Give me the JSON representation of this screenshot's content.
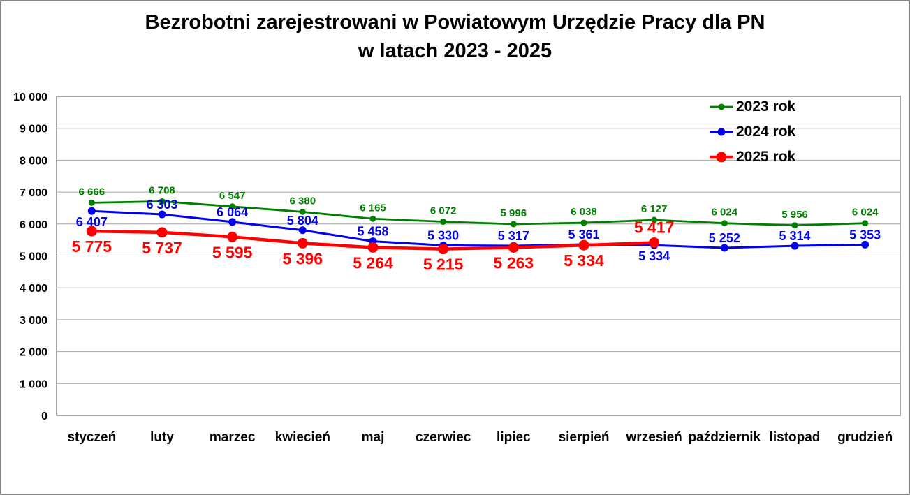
{
  "chart_data": {
    "type": "line",
    "title_line1": "Bezrobotni zarejestrowani w Powiatowym Urzędzie Pracy dla PN",
    "title_line2": "w latach 2023 - 2025",
    "categories": [
      "styczeń",
      "luty",
      "marzec",
      "kwiecień",
      "maj",
      "czerwiec",
      "lipiec",
      "sierpień",
      "wrzesień",
      "październik",
      "listopad",
      "grudzień"
    ],
    "series": [
      {
        "name": "2023 rok",
        "color": "#008000",
        "values": [
          6666,
          6708,
          6547,
          6380,
          6165,
          6072,
          5996,
          6038,
          6127,
          6024,
          5956,
          6024
        ],
        "line_width": 2.8,
        "marker_radius": 4.5,
        "label_size": 15,
        "label_dy_above": -11,
        "label_dy_below": 20,
        "label_positions": [
          "above",
          "above",
          "above",
          "above",
          "above",
          "above",
          "above",
          "above",
          "above",
          "above",
          "above",
          "above"
        ]
      },
      {
        "name": "2024 rok",
        "color": "#0000ee",
        "values": [
          6407,
          6303,
          6064,
          5804,
          5458,
          5330,
          5317,
          5361,
          5334,
          5252,
          5314,
          5353
        ],
        "line_width": 3,
        "marker_radius": 5.5,
        "label_size": 18,
        "label_dy_above": -8,
        "label_dy_below": 22,
        "label_positions": [
          "below",
          "above",
          "above",
          "above",
          "above",
          "above",
          "above",
          "above",
          "below",
          "above",
          "above",
          "above"
        ]
      },
      {
        "name": "2025 rok",
        "color": "#ff0000",
        "values": [
          5775,
          5737,
          5595,
          5396,
          5264,
          5215,
          5263,
          5334,
          5417
        ],
        "line_width": 4.5,
        "marker_radius": 7.5,
        "label_size": 23,
        "label_dy_above": -14,
        "label_dy_below": 30,
        "label_positions": [
          "below",
          "below",
          "below",
          "below",
          "below",
          "below",
          "below",
          "below",
          "above"
        ]
      }
    ],
    "xlabel": "",
    "ylabel": "",
    "ylim": [
      0,
      10000
    ],
    "ytick_step": 1000,
    "grid": "horizontal",
    "legend_position": "top-right",
    "colors": {
      "gridline": "#a6a6a6",
      "plot_border": "#808080",
      "axis_text": "#000000"
    }
  }
}
